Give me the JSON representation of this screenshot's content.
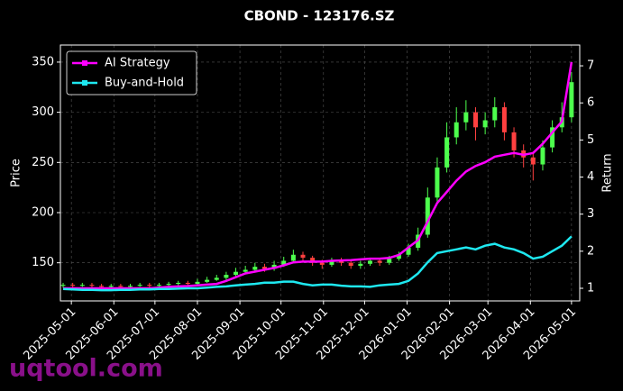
{
  "chart_data": {
    "type": "candlestick",
    "title": "CBOND - 123176.SZ",
    "ylabel": "Price",
    "y2label": "Return",
    "grid": true,
    "legend": "upper left",
    "up_color": "#4dff4d",
    "down_color": "#ff4040",
    "x": [
      "2025-04-25",
      "2025-05-02",
      "2025-05-09",
      "2025-05-16",
      "2025-05-23",
      "2025-05-30",
      "2025-06-06",
      "2025-06-13",
      "2025-06-20",
      "2025-06-27",
      "2025-07-04",
      "2025-07-11",
      "2025-07-18",
      "2025-07-25",
      "2025-08-01",
      "2025-08-08",
      "2025-08-15",
      "2025-08-22",
      "2025-08-29",
      "2025-09-05",
      "2025-09-12",
      "2025-09-19",
      "2025-09-26",
      "2025-10-03",
      "2025-10-10",
      "2025-10-17",
      "2025-10-24",
      "2025-10-31",
      "2025-11-07",
      "2025-11-14",
      "2025-11-21",
      "2025-11-28",
      "2025-12-05",
      "2025-12-12",
      "2025-12-19",
      "2025-12-26",
      "2026-01-02",
      "2026-01-09",
      "2026-01-16",
      "2026-01-23",
      "2026-01-30",
      "2026-02-06",
      "2026-02-13",
      "2026-02-20",
      "2026-02-27",
      "2026-03-06",
      "2026-03-13",
      "2026-03-20",
      "2026-03-27",
      "2026-04-03",
      "2026-04-10",
      "2026-04-17",
      "2026-04-24",
      "2026-05-01"
    ],
    "open": [
      127,
      128,
      127,
      128,
      127,
      126,
      127,
      126,
      127,
      128,
      127,
      128,
      129,
      130,
      129,
      131,
      133,
      135,
      138,
      141,
      143,
      146,
      144,
      148,
      152,
      158,
      155,
      150,
      148,
      152,
      150,
      147,
      149,
      152,
      150,
      154,
      158,
      165,
      178,
      215,
      245,
      275,
      290,
      300,
      285,
      292,
      305,
      280,
      262,
      255,
      248,
      265,
      285,
      295
    ],
    "high": [
      130,
      130,
      130,
      130,
      129,
      129,
      129,
      129,
      130,
      130,
      130,
      131,
      132,
      132,
      134,
      136,
      138,
      141,
      145,
      147,
      150,
      149,
      152,
      156,
      163,
      161,
      157,
      153,
      155,
      155,
      152,
      152,
      155,
      155,
      157,
      161,
      169,
      185,
      225,
      255,
      290,
      305,
      312,
      305,
      300,
      315,
      310,
      285,
      268,
      260,
      272,
      292,
      310,
      340
    ],
    "low": [
      125,
      125,
      126,
      125,
      124,
      124,
      124,
      125,
      126,
      125,
      126,
      127,
      127,
      127,
      128,
      130,
      132,
      133,
      136,
      139,
      141,
      141,
      142,
      146,
      150,
      152,
      147,
      144,
      146,
      147,
      144,
      144,
      147,
      147,
      148,
      152,
      156,
      162,
      175,
      210,
      240,
      268,
      282,
      272,
      278,
      285,
      272,
      255,
      245,
      232,
      242,
      260,
      280,
      290
    ],
    "close": [
      128,
      127,
      128,
      127,
      126,
      127,
      126,
      127,
      128,
      127,
      128,
      129,
      130,
      129,
      131,
      133,
      135,
      138,
      141,
      143,
      146,
      144,
      148,
      152,
      158,
      155,
      150,
      148,
      152,
      150,
      147,
      149,
      152,
      150,
      154,
      158,
      165,
      178,
      215,
      245,
      275,
      290,
      300,
      285,
      292,
      305,
      280,
      262,
      255,
      248,
      265,
      285,
      295,
      330
    ],
    "series": [
      {
        "name": "AI Strategy",
        "color": "#ff00ff",
        "axis": "y2",
        "values": [
          1.0,
          1.0,
          1.0,
          1.0,
          1.0,
          1.0,
          1.0,
          1.0,
          1.0,
          1.0,
          1.02,
          1.04,
          1.05,
          1.06,
          1.08,
          1.1,
          1.12,
          1.2,
          1.3,
          1.4,
          1.45,
          1.5,
          1.55,
          1.62,
          1.7,
          1.72,
          1.72,
          1.72,
          1.74,
          1.75,
          1.76,
          1.78,
          1.8,
          1.8,
          1.82,
          1.9,
          2.1,
          2.3,
          2.8,
          3.3,
          3.6,
          3.9,
          4.15,
          4.3,
          4.4,
          4.55,
          4.6,
          4.65,
          4.6,
          4.65,
          4.9,
          5.2,
          5.5,
          7.1
        ]
      },
      {
        "name": "Buy-and-Hold",
        "color": "#1ee8f0",
        "axis": "y2",
        "values": [
          0.98,
          0.97,
          0.96,
          0.96,
          0.95,
          0.95,
          0.96,
          0.96,
          0.97,
          0.97,
          0.98,
          0.98,
          0.99,
          1.0,
          1.0,
          1.02,
          1.04,
          1.05,
          1.08,
          1.1,
          1.12,
          1.15,
          1.15,
          1.18,
          1.18,
          1.12,
          1.08,
          1.1,
          1.1,
          1.07,
          1.05,
          1.05,
          1.04,
          1.08,
          1.1,
          1.12,
          1.2,
          1.4,
          1.7,
          1.95,
          2.0,
          2.05,
          2.1,
          2.05,
          2.15,
          2.2,
          2.1,
          2.05,
          1.95,
          1.8,
          1.85,
          2.0,
          2.15,
          2.4
        ]
      }
    ],
    "xlim": [
      "2025-04-23",
      "2026-05-07"
    ],
    "xticks": [
      "2025-05-01",
      "2025-06-01",
      "2025-07-01",
      "2025-08-01",
      "2025-09-01",
      "2025-10-01",
      "2025-11-01",
      "2025-12-01",
      "2026-01-01",
      "2026-02-01",
      "2026-03-01",
      "2026-04-01",
      "2026-05-01"
    ],
    "ylim": [
      112,
      367
    ],
    "yticks": [
      150,
      200,
      250,
      300,
      350
    ],
    "y2lim": [
      0.66,
      7.56
    ],
    "y2ticks": [
      1,
      2,
      3,
      4,
      5,
      6,
      7
    ]
  },
  "watermark": "uqtool.com"
}
